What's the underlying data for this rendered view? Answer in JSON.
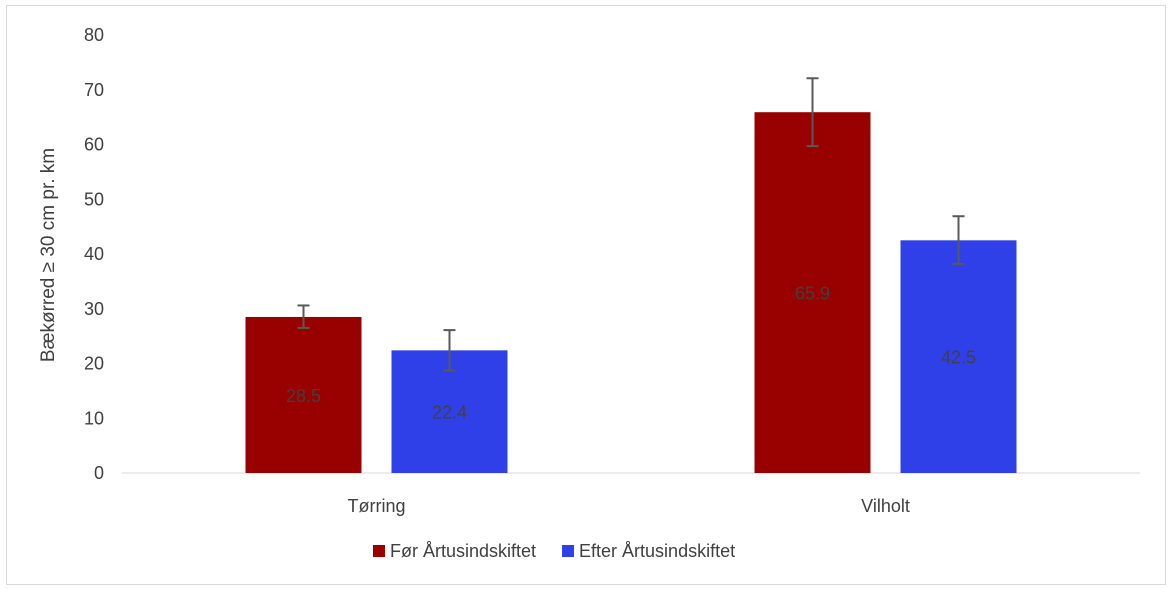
{
  "chart_data": {
    "type": "bar",
    "categories": [
      "Tørring",
      "Vilholt"
    ],
    "series": [
      {
        "name": "Før Årtusindskiftet",
        "values": [
          28.5,
          65.9
        ],
        "error_low": [
          26.5,
          59.7
        ],
        "error_high": [
          30.6,
          72.1
        ],
        "data_labels": [
          "28.5",
          "65.9"
        ],
        "color": "#990000"
      },
      {
        "name": "Efter Årtusindskiftet",
        "values": [
          22.4,
          42.5
        ],
        "error_low": [
          18.7,
          38.2
        ],
        "error_high": [
          26.1,
          46.9
        ],
        "data_labels": [
          "22.4",
          "42.5"
        ],
        "color": "#3040e8"
      }
    ],
    "title": "",
    "xlabel": "",
    "ylabel": "Bækørred ≥ 30 cm pr. km",
    "ylim": [
      0,
      80
    ],
    "yticks": [
      "0",
      "10",
      "20",
      "30",
      "40",
      "50",
      "60",
      "70",
      "80"
    ],
    "grid": false,
    "legend_position": "bottom",
    "axis_color": "#d9d9d9",
    "error_bar_color": "#595959",
    "label_color": "#404040"
  }
}
